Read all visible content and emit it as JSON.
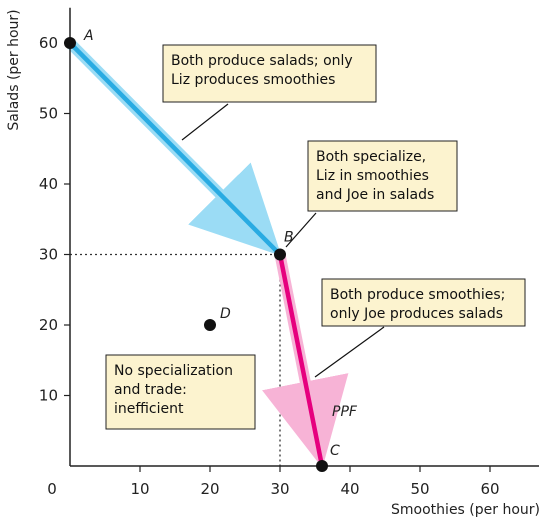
{
  "chart_data": {
    "type": "line",
    "xlabel": "Smoothies (per hour)",
    "ylabel": "Salads (per hour)",
    "xlim": [
      0,
      67
    ],
    "ylim": [
      0,
      65
    ],
    "xticks": [
      0,
      10,
      20,
      30,
      40,
      50,
      60
    ],
    "yticks": [
      10,
      20,
      30,
      40,
      50,
      60
    ],
    "grid": false,
    "series": [
      {
        "name": "",
        "x": [
          0,
          30
        ],
        "y": [
          60,
          30
        ],
        "color": "#29abe2"
      },
      {
        "name": "",
        "x": [
          30,
          36
        ],
        "y": [
          30,
          0
        ],
        "color": "#e6007e"
      }
    ],
    "curve_label": "PPF",
    "reference_lines": {
      "x": 30,
      "y": 30
    },
    "points": [
      {
        "label": "A",
        "x": 0,
        "y": 60
      },
      {
        "label": "B",
        "x": 30,
        "y": 30
      },
      {
        "label": "C",
        "x": 36,
        "y": 0
      },
      {
        "label": "D",
        "x": 20,
        "y": 20
      }
    ],
    "annotations": [
      {
        "lines": [
          "Both produce salads; only",
          "Liz produces smoothies"
        ],
        "color": "#fcf3cf"
      },
      {
        "lines": [
          "Both  specialize,",
          "Liz in smoothies",
          "and Joe in salads"
        ],
        "color": "#fcf3cf"
      },
      {
        "lines": [
          "Both produce smoothies;",
          "only Joe produces salads"
        ],
        "color": "#fcf3cf"
      },
      {
        "lines": [
          "No specialization",
          "and trade:",
          "inefficient"
        ],
        "color": "#fcf3cf"
      }
    ]
  }
}
